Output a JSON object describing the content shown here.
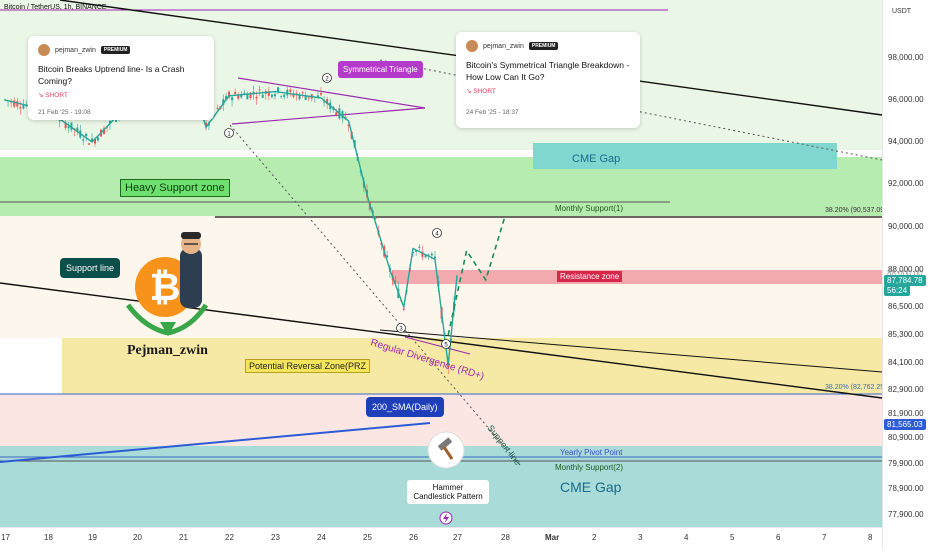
{
  "header": {
    "symbol": "Bitcoin / TetherUS, 1h, BINANCE",
    "currency": "USDT"
  },
  "chart_data": {
    "type": "candlestick",
    "title": "Bitcoin / TetherUS, 1h, BINANCE",
    "ylim": [
      77000,
      99500
    ],
    "y_ticks": [
      "98,000.00",
      "96,000.00",
      "94,000.00",
      "92,000.00",
      "90,000.00",
      "88,000.00",
      "86,500.00",
      "85,300.00",
      "84,100.00",
      "82,900.00",
      "81,900.00",
      "80,900.00",
      "79,900.00",
      "78,900.00",
      "77,900.00"
    ],
    "x_ticks": [
      "17",
      "18",
      "19",
      "20",
      "21",
      "22",
      "23",
      "24",
      "25",
      "26",
      "27",
      "28",
      "Mar",
      "2",
      "3",
      "4",
      "5",
      "6",
      "7",
      "8"
    ],
    "price_path": [
      {
        "x": "17",
        "y": 96000
      },
      {
        "x": "18",
        "y": 95500
      },
      {
        "x": "19",
        "y": 94000
      },
      {
        "x": "20",
        "y": 96200
      },
      {
        "x": "21",
        "y": 98500
      },
      {
        "x": "21.5",
        "y": 94700
      },
      {
        "x": "22",
        "y": 96200
      },
      {
        "x": "23",
        "y": 96400
      },
      {
        "x": "24",
        "y": 96100
      },
      {
        "x": "24.6",
        "y": 95000
      },
      {
        "x": "25",
        "y": 91500
      },
      {
        "x": "25.5",
        "y": 88000
      },
      {
        "x": "25.8",
        "y": 86500
      },
      {
        "x": "26",
        "y": 89000
      },
      {
        "x": "26.5",
        "y": 88500
      },
      {
        "x": "26.8",
        "y": 84000
      },
      {
        "x": "27",
        "y": 87784.78
      }
    ],
    "projection": [
      {
        "x": "26.8",
        "y": 85300
      },
      {
        "x": "27.2",
        "y": 88900
      },
      {
        "x": "27.6",
        "y": 87600
      },
      {
        "x": "28",
        "y": 90500
      }
    ],
    "annotations": {
      "heavy_support_zone": "Heavy Support zone",
      "cme_gap_upper": "CME Gap",
      "cme_gap_lower": "CME Gap",
      "monthly_support_1": "Monthly Support(1)",
      "fib_upper": "38.20% (90,537.09)",
      "fib_lower": "38.20% (82,762.25)",
      "resistance_zone": "Resistance zone",
      "prz": "Potential Reversal Zone(PRZ",
      "regular_divergence": "Regular Divergence (RD+)",
      "support_line_left": "Support line",
      "support_line_diag": "Support line",
      "sma_200": "200_SMA(Daily)",
      "yearly_pivot": "Yearly Pivot Point",
      "monthly_support_2": "Monthly Support(2)",
      "symmetrical_triangle": "Symmetrical Triangle",
      "hammer": "Hammer\nCandlestick Pattern",
      "brand": "Pejman_zwin",
      "wave_labels": [
        "1",
        "2",
        "3",
        "4",
        "5"
      ]
    },
    "current_price": "87,784.78",
    "countdown": "56:24",
    "sma_price": "81,565.03",
    "partial_price": "88,000.00"
  },
  "cards": [
    {
      "author": "pejman_zwin",
      "badge": "PREMIUM",
      "title": "Bitcoin Breaks Uptrend line- Is a Crash Coming?",
      "direction": "↘ SHORT",
      "date": "21 Feb '25 - 19:08"
    },
    {
      "author": "pejman_zwin",
      "badge": "PREMIUM",
      "title": "Bitcoin's Symmetrical Triangle Breakdown - How Low Can It Go?",
      "direction": "↘ SHORT",
      "date": "24 Feb '25 - 18:37"
    }
  ],
  "colors": {
    "up": "#26a69a",
    "down": "#ef5350",
    "support_zone": "#b7ecb0",
    "cme_gap": "#80d7d0",
    "prz": "#f6e9a6",
    "lower_pink": "#fbe6e3",
    "resistance": "#f2aaae",
    "sma_line": "#2d5bd6",
    "purple": "#9c27b0"
  }
}
